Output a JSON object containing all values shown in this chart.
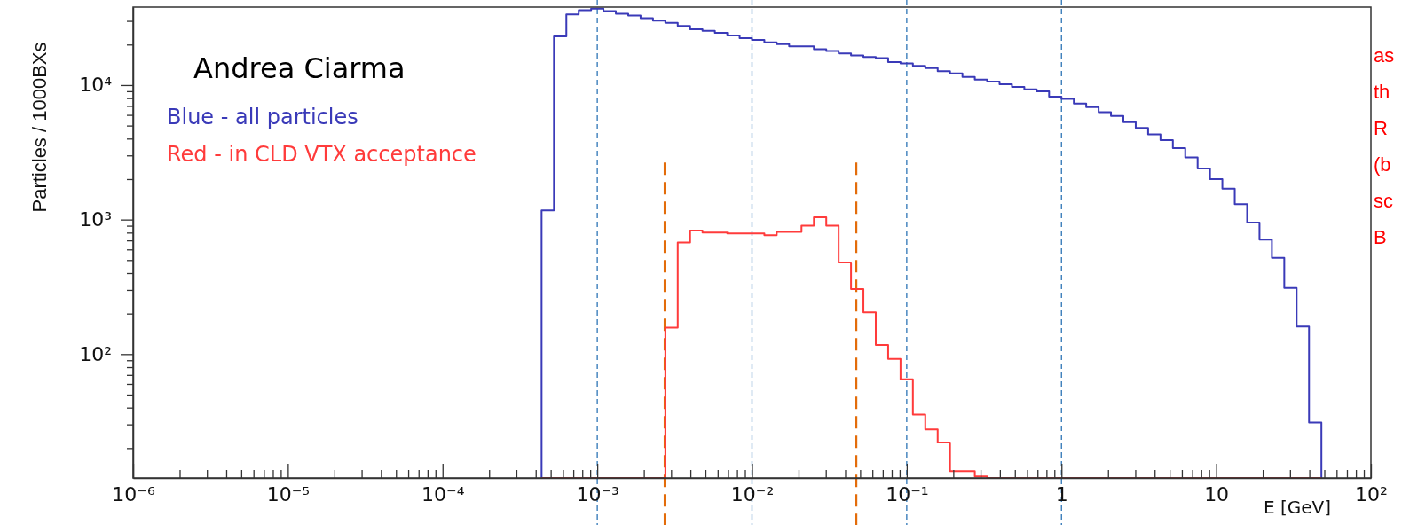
{
  "chart_data": {
    "type": "histogram",
    "xlabel": "E [GeV]",
    "ylabel": "Particles / 1000BXs",
    "log": "xy",
    "grid": false,
    "legend": "top left",
    "xlim": [
      1e-06,
      100
    ],
    "ylim": [
      12,
      38000
    ],
    "xticks": [
      {
        "value": 1e-06,
        "label": "10⁻⁶"
      },
      {
        "value": 2e-06,
        "label": null
      },
      {
        "value": 3e-06,
        "label": null
      },
      {
        "value": 4e-06,
        "label": null
      },
      {
        "value": 5e-06,
        "label": null
      },
      {
        "value": 6e-06,
        "label": null
      },
      {
        "value": 7e-06,
        "label": null
      },
      {
        "value": 8e-06,
        "label": null
      },
      {
        "value": 9e-06,
        "label": null
      },
      {
        "value": 1e-05,
        "label": "10⁻⁵"
      },
      {
        "value": 2e-05,
        "label": null
      },
      {
        "value": 3e-05,
        "label": null
      },
      {
        "value": 4e-05,
        "label": null
      },
      {
        "value": 5e-05,
        "label": null
      },
      {
        "value": 6e-05,
        "label": null
      },
      {
        "value": 7e-05,
        "label": null
      },
      {
        "value": 8e-05,
        "label": null
      },
      {
        "value": 9e-05,
        "label": null
      },
      {
        "value": 0.0001,
        "label": "10⁻⁴"
      },
      {
        "value": 0.0002,
        "label": null
      },
      {
        "value": 0.0003,
        "label": null
      },
      {
        "value": 0.0004,
        "label": null
      },
      {
        "value": 0.0005,
        "label": null
      },
      {
        "value": 0.0006,
        "label": null
      },
      {
        "value": 0.0007,
        "label": null
      },
      {
        "value": 0.0008,
        "label": null
      },
      {
        "value": 0.0009,
        "label": null
      },
      {
        "value": 0.001,
        "label": "10⁻³"
      },
      {
        "value": 0.002,
        "label": null
      },
      {
        "value": 0.003,
        "label": null
      },
      {
        "value": 0.004,
        "label": null
      },
      {
        "value": 0.005,
        "label": null
      },
      {
        "value": 0.006,
        "label": null
      },
      {
        "value": 0.007,
        "label": null
      },
      {
        "value": 0.008,
        "label": null
      },
      {
        "value": 0.009,
        "label": null
      },
      {
        "value": 0.01,
        "label": "10⁻²"
      },
      {
        "value": 0.02,
        "label": null
      },
      {
        "value": 0.03,
        "label": null
      },
      {
        "value": 0.04,
        "label": null
      },
      {
        "value": 0.05,
        "label": null
      },
      {
        "value": 0.06,
        "label": null
      },
      {
        "value": 0.07,
        "label": null
      },
      {
        "value": 0.08,
        "label": null
      },
      {
        "value": 0.09,
        "label": null
      },
      {
        "value": 0.1,
        "label": "10⁻¹"
      },
      {
        "value": 0.2,
        "label": null
      },
      {
        "value": 0.3,
        "label": null
      },
      {
        "value": 0.4,
        "label": null
      },
      {
        "value": 0.5,
        "label": null
      },
      {
        "value": 0.6,
        "label": null
      },
      {
        "value": 0.7,
        "label": null
      },
      {
        "value": 0.8,
        "label": null
      },
      {
        "value": 0.9,
        "label": null
      },
      1,
      {
        "value": 2,
        "label": null
      },
      {
        "value": 3,
        "label": null
      },
      {
        "value": 4,
        "label": null
      },
      {
        "value": 5,
        "label": null
      },
      {
        "value": 6,
        "label": null
      },
      {
        "value": 7,
        "label": null
      },
      {
        "value": 8,
        "label": null
      },
      {
        "value": 9,
        "label": null
      },
      10,
      {
        "value": 20,
        "label": null
      },
      {
        "value": 30,
        "label": null
      },
      {
        "value": 40,
        "label": null
      },
      {
        "value": 50,
        "label": null
      },
      {
        "value": 60,
        "label": null
      },
      {
        "value": 70,
        "label": null
      },
      {
        "value": 80,
        "label": null
      },
      {
        "value": 90,
        "label": null
      },
      {
        "value": 100,
        "label": "10²"
      }
    ],
    "yticks": [
      {
        "value": 20,
        "label": null
      },
      {
        "value": 30,
        "label": null
      },
      {
        "value": 40,
        "label": null
      },
      {
        "value": 50,
        "label": null
      },
      {
        "value": 60,
        "label": null
      },
      {
        "value": 70,
        "label": null
      },
      {
        "value": 80,
        "label": null
      },
      {
        "value": 90,
        "label": null
      },
      {
        "value": 100,
        "label": "10²"
      },
      {
        "value": 200,
        "label": null
      },
      {
        "value": 300,
        "label": null
      },
      {
        "value": 400,
        "label": null
      },
      {
        "value": 500,
        "label": null
      },
      {
        "value": 600,
        "label": null
      },
      {
        "value": 700,
        "label": null
      },
      {
        "value": 800,
        "label": null
      },
      {
        "value": 900,
        "label": null
      },
      {
        "value": 1000,
        "label": "10³"
      },
      {
        "value": 2000,
        "label": null
      },
      {
        "value": 3000,
        "label": null
      },
      {
        "value": 4000,
        "label": null
      },
      {
        "value": 5000,
        "label": null
      },
      {
        "value": 6000,
        "label": null
      },
      {
        "value": 7000,
        "label": null
      },
      {
        "value": 8000,
        "label": null
      },
      {
        "value": 9000,
        "label": null
      },
      {
        "value": 10000,
        "label": "10⁴"
      },
      {
        "value": 20000,
        "label": null
      },
      {
        "value": 30000,
        "label": null
      }
    ],
    "bins": [
      0.0004365,
      0.0005248,
      0.000631,
      0.0007586,
      0.000912,
      0.001096,
      0.001318,
      0.001585,
      0.001905,
      0.002291,
      0.002754,
      0.003311,
      0.003981,
      0.004786,
      0.005754,
      0.006918,
      0.008318,
      0.01,
      0.01202,
      0.01445,
      0.01738,
      0.02089,
      0.02512,
      0.0302,
      0.03631,
      0.04365,
      0.05248,
      0.0631,
      0.07586,
      0.0912,
      0.1096,
      0.1318,
      0.1585,
      0.1905,
      0.2291,
      0.2754,
      0.3311,
      0.3981,
      0.4786,
      0.5754,
      0.6918,
      0.8318,
      1,
      1.202,
      1.445,
      1.738,
      2.089,
      2.512,
      3.02,
      3.631,
      4.365,
      5.248,
      6.31,
      7.586,
      9.12,
      10.96,
      13.18,
      15.85,
      19.05,
      22.91,
      27.54,
      33.11,
      39.81,
      47.86
    ],
    "series": [
      {
        "name": "Blue - all particles",
        "color": "#3a3ab8",
        "values": [
          1170,
          23000,
          33500,
          36000,
          37000,
          35500,
          33900,
          32900,
          31400,
          30200,
          29000,
          27500,
          26000,
          25300,
          24500,
          23400,
          22300,
          21700,
          20800,
          20200,
          19400,
          19400,
          18500,
          17900,
          17200,
          16600,
          16200,
          15900,
          14800,
          14500,
          13900,
          13400,
          12700,
          12200,
          11500,
          11000,
          10600,
          10150,
          9700,
          9300,
          9000,
          8200,
          7900,
          7300,
          6850,
          6300,
          5900,
          5300,
          4800,
          4300,
          3900,
          3400,
          2900,
          2400,
          2000,
          1700,
          1300,
          950,
          710,
          520,
          310,
          160,
          31
        ]
      },
      {
        "name": "Red - in CLD VTX acceptance",
        "color": "#ff3b3b",
        "values": [
          null,
          null,
          null,
          null,
          null,
          null,
          null,
          null,
          null,
          null,
          157,
          675,
          830,
          800,
          800,
          790,
          790,
          790,
          765,
          810,
          810,
          900,
          1040,
          900,
          480,
          304,
          204,
          117,
          92,
          65,
          35.5,
          27.5,
          22,
          13.5,
          13.5,
          12.3,
          null,
          null,
          null,
          null,
          null,
          null,
          null,
          null,
          null,
          null,
          null,
          null,
          null,
          null,
          null,
          null,
          null,
          null,
          null,
          null,
          null,
          null,
          null,
          null,
          null,
          null,
          null
        ]
      }
    ],
    "ref_lines": [
      {
        "axis": "x",
        "value": 0.001,
        "color": "#2e75b6",
        "line_style": "dashed"
      },
      {
        "axis": "x",
        "value": 0.01,
        "color": "#2e75b6",
        "line_style": "dashed"
      },
      {
        "axis": "x",
        "value": 0.1,
        "color": "#2e75b6",
        "line_style": "dashed"
      },
      {
        "axis": "x",
        "value": 1,
        "color": "#2e75b6",
        "line_style": "dashed"
      },
      {
        "axis": "x",
        "value": 0.00274,
        "color": "#e36c0a",
        "line_style": "dashed"
      },
      {
        "axis": "x",
        "value": 0.047,
        "color": "#e36c0a",
        "line_style": "dashed"
      }
    ],
    "annotations": [
      "Andrea Ciarma",
      "as",
      "th",
      "R",
      "(b",
      "sc",
      "B"
    ]
  }
}
